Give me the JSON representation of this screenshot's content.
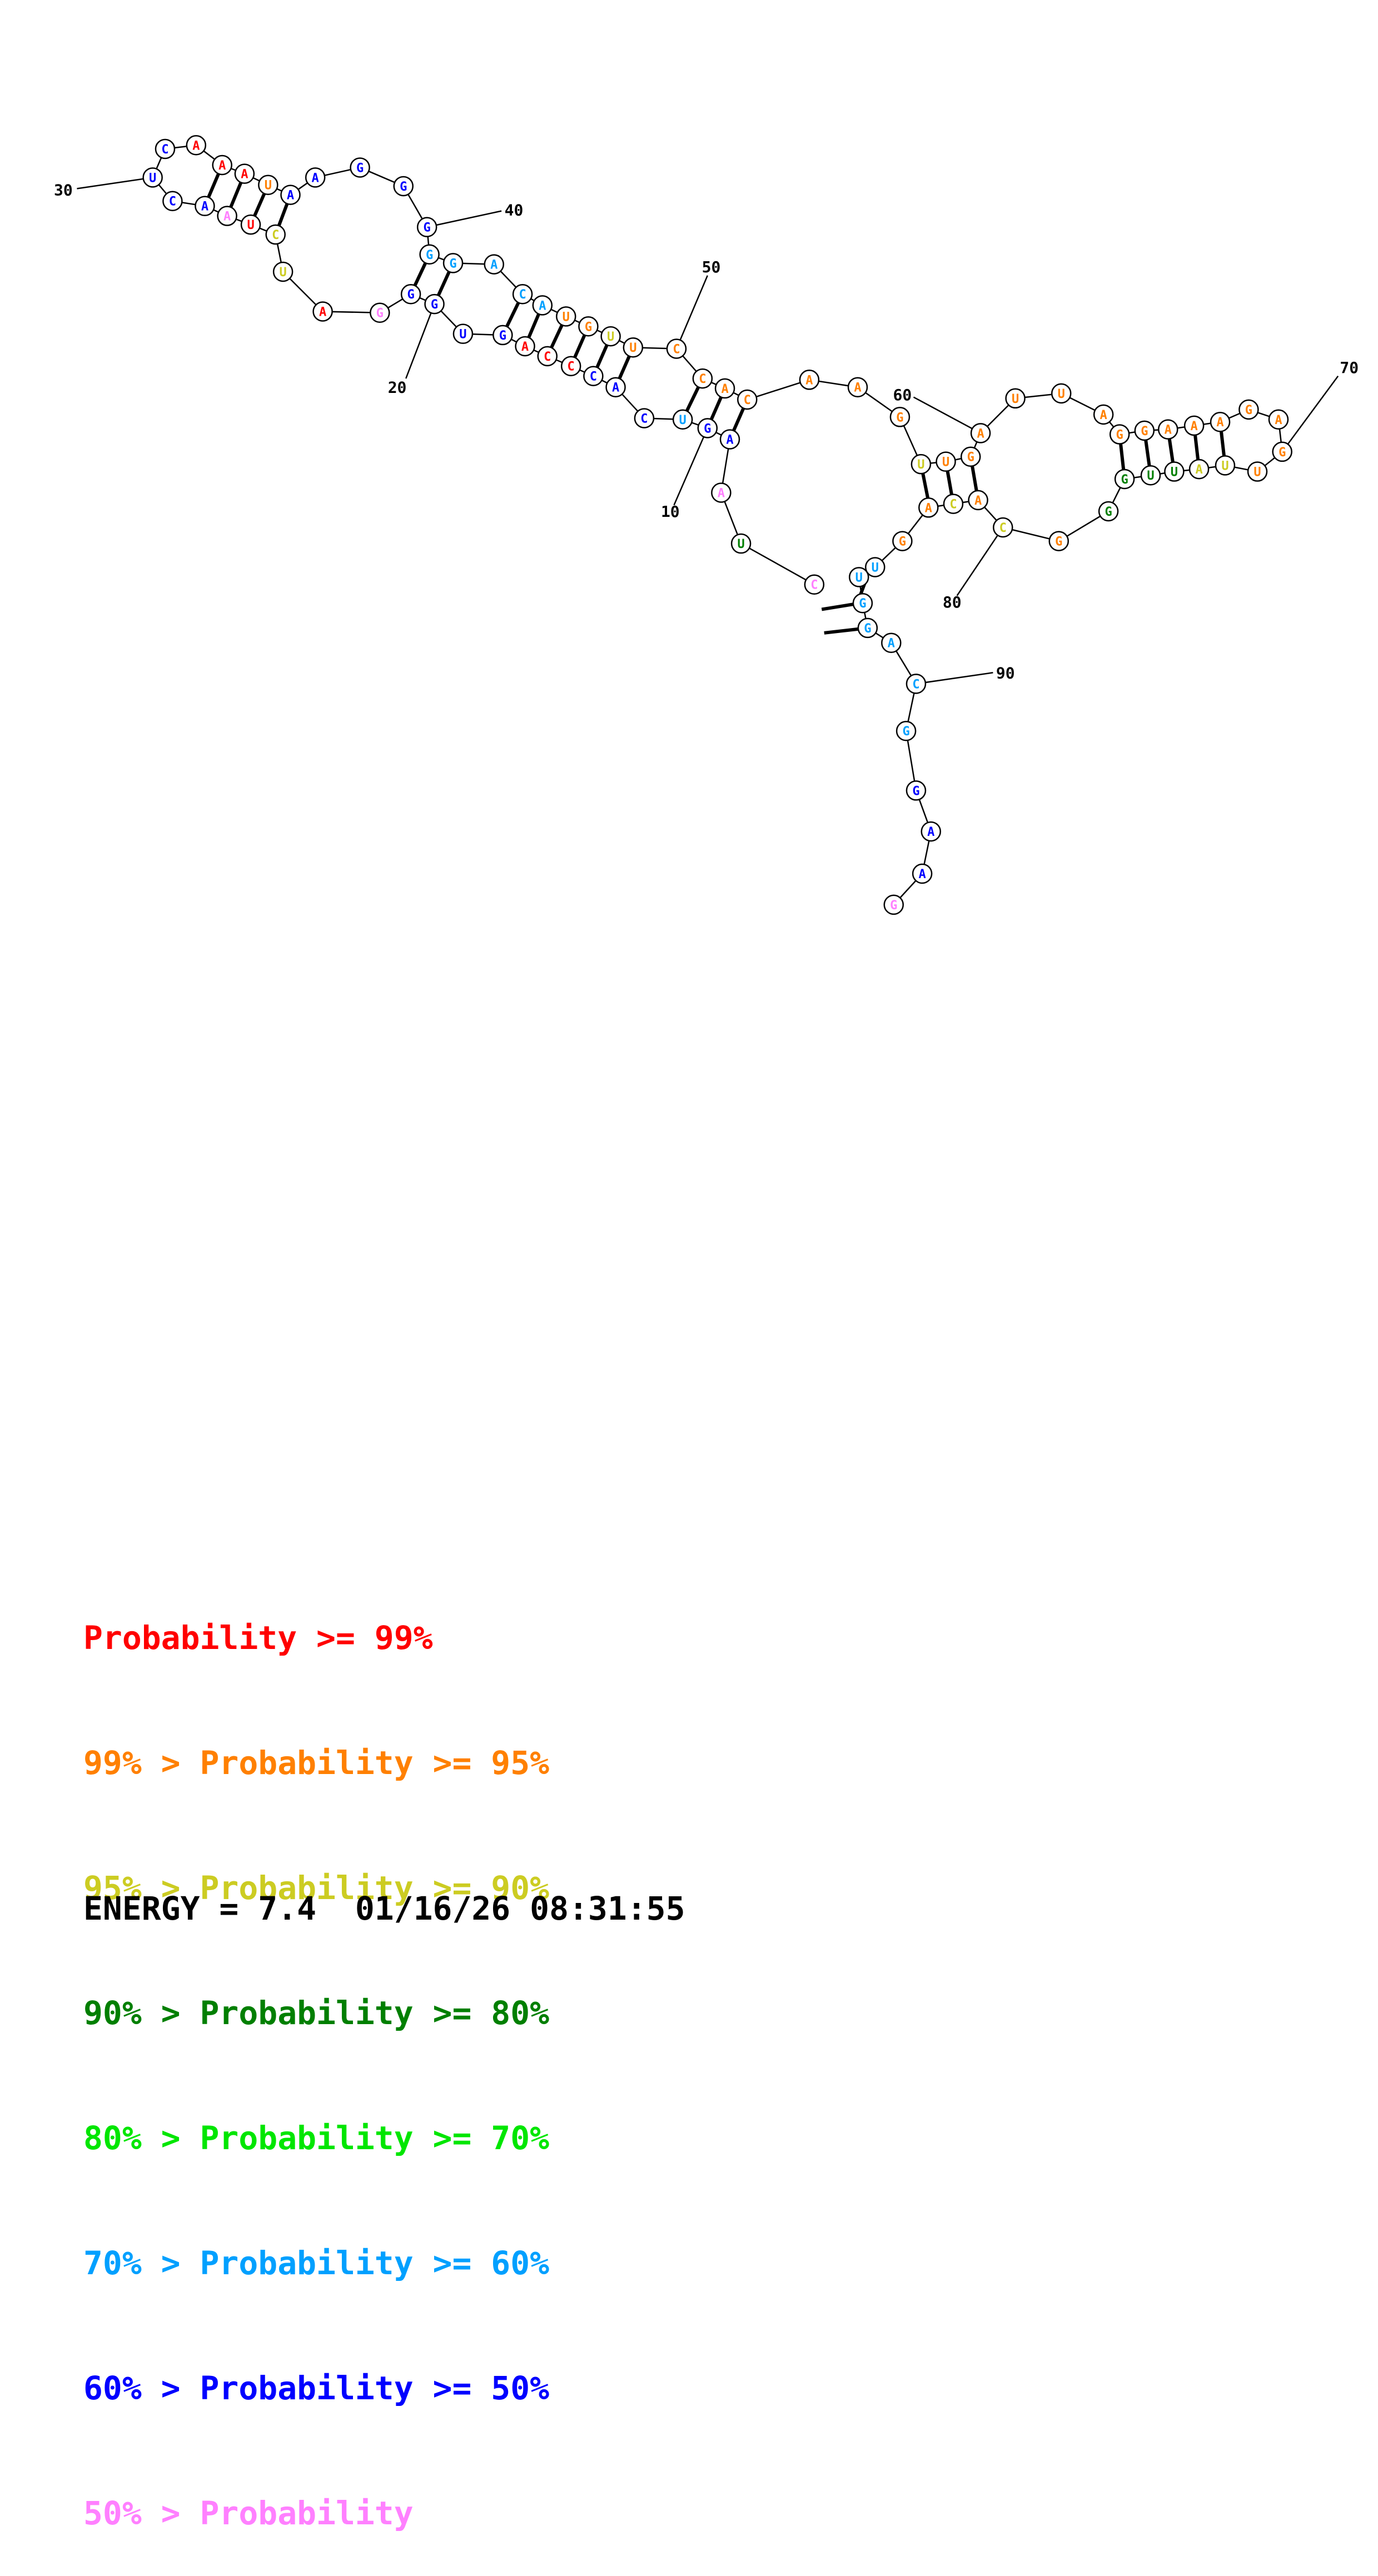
{
  "structure": {
    "sequence": [
      "G",
      "A",
      "A",
      "G",
      "G",
      "C",
      "A",
      "G",
      "G",
      "U",
      "U",
      "G",
      "A",
      "C",
      "A",
      "C",
      "G",
      "G",
      "G",
      "U",
      "U",
      "A",
      "U",
      "U",
      "G",
      "A",
      "G",
      "A",
      "A",
      "A",
      "G",
      "G",
      "A",
      "U",
      "U",
      "A",
      "G",
      "U",
      "U",
      "G",
      "A",
      "A",
      "C",
      "A",
      "C",
      "C",
      "U",
      "U",
      "G",
      "U",
      "A",
      "C",
      "A",
      "G",
      "G",
      "G",
      "G",
      "G",
      "A",
      "A",
      "U",
      "A",
      "A",
      "A",
      "C",
      "U",
      "C",
      "A",
      "A",
      "U",
      "C",
      "U",
      "A",
      "G",
      "G",
      "G",
      "U",
      "G",
      "A",
      "C",
      "C",
      "C",
      "A",
      "C",
      "U",
      "G",
      "A",
      "A",
      "U",
      "C"
    ],
    "probability_class": [
      "pink",
      "blue",
      "blue",
      "blue",
      "cyan",
      "cyan",
      "cyan",
      "cyan",
      "cyan",
      "cyan",
      "cyan",
      "orange",
      "orange",
      "yellow",
      "orange",
      "yellow",
      "orange",
      "green",
      "green",
      "green",
      "green",
      "yellow",
      "yellow",
      "orange",
      "orange",
      "orange",
      "orange",
      "orange",
      "orange",
      "orange",
      "orange",
      "orange",
      "orange",
      "orange",
      "orange",
      "orange",
      "orange",
      "orange",
      "yellow",
      "orange",
      "orange",
      "orange",
      "orange",
      "orange",
      "orange",
      "orange",
      "orange",
      "yellow",
      "orange",
      "orange",
      "cyan",
      "cyan",
      "cyan",
      "cyan",
      "cyan",
      "blue",
      "blue",
      "blue",
      "blue",
      "blue",
      "orange",
      "red",
      "red",
      "red",
      "blue",
      "blue",
      "blue",
      "blue",
      "pink",
      "red",
      "yellow",
      "yellow",
      "red",
      "pink",
      "blue",
      "blue",
      "blue",
      "blue",
      "red",
      "red",
      "red",
      "blue",
      "blue",
      "blue",
      "cyan",
      "blue",
      "blue",
      "pink",
      "green",
      "pink"
    ],
    "position_labels": [
      "10",
      "20",
      "30",
      "40",
      "50",
      "60",
      "70",
      "80",
      "90"
    ]
  },
  "legend": {
    "lines": [
      {
        "prefix": "",
        "text": "Probability >= 99%",
        "color": "#ff0000"
      },
      {
        "prefix": "99% > ",
        "text": "Probability >= 95%",
        "color": "#ff8000"
      },
      {
        "prefix": "95% > ",
        "text": "Probability >= 90%",
        "color": "#cccc22"
      },
      {
        "prefix": "90% > ",
        "text": "Probability >= 80%",
        "color": "#007f00"
      },
      {
        "prefix": "80% > ",
        "text": "Probability >= 70%",
        "color": "#00e600"
      },
      {
        "prefix": "70% > ",
        "text": "Probability >= 60%",
        "color": "#00a0ff"
      },
      {
        "prefix": "60% > ",
        "text": "Probability >= 50%",
        "color": "#0000ff"
      },
      {
        "prefix": "50% > ",
        "text": "Probability",
        "color": "#ff80ff"
      }
    ]
  },
  "footer": {
    "energy_label": "ENERGY = 7.4",
    "timestamp": "01/16/26 08:31:55"
  },
  "colors": {
    "red": "#ff0000",
    "orange": "#ff8000",
    "yellow": "#cccc22",
    "green": "#007f00",
    "lime": "#00e600",
    "cyan": "#00a0ff",
    "blue": "#0000ff",
    "pink": "#ff80ff"
  }
}
